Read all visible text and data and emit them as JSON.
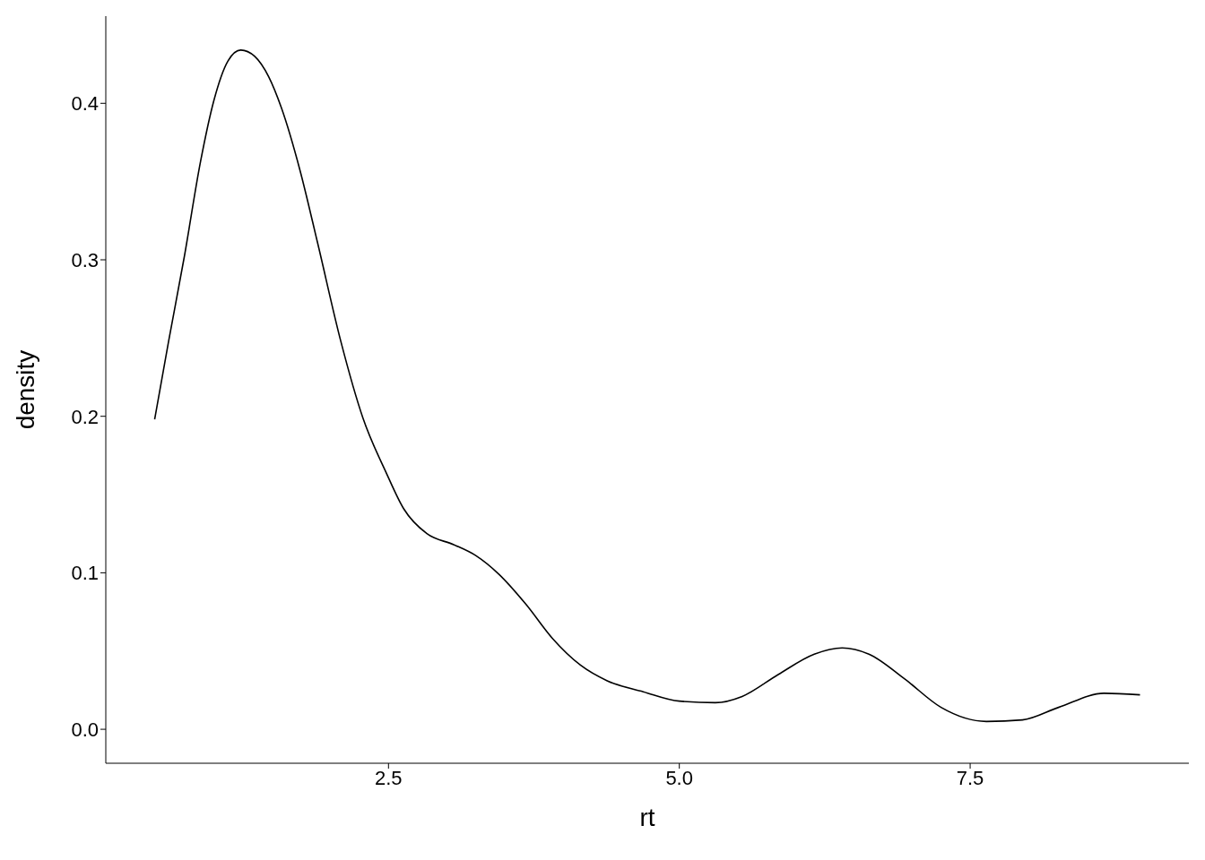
{
  "chart_data": {
    "type": "line",
    "xlabel": "rt",
    "ylabel": "density",
    "x": [
      0.49,
      0.61,
      0.745,
      0.885,
      1.0,
      1.12,
      1.23,
      1.35,
      1.47,
      1.58,
      1.74,
      1.89,
      2.09,
      2.28,
      2.48,
      2.63,
      2.83,
      3.06,
      3.25,
      3.45,
      3.68,
      3.91,
      4.15,
      4.38,
      4.69,
      5.0,
      5.31,
      5.54,
      5.85,
      6.16,
      6.4,
      6.63,
      6.94,
      7.25,
      7.64,
      7.95,
      8.26,
      8.65,
      8.96
    ],
    "series": [
      {
        "color": "#000000",
        "values": [
          0.198,
          0.248,
          0.302,
          0.363,
          0.402,
          0.427,
          0.434,
          0.43,
          0.417,
          0.397,
          0.357,
          0.311,
          0.248,
          0.199,
          0.164,
          0.141,
          0.125,
          0.118,
          0.111,
          0.099,
          0.08,
          0.058,
          0.041,
          0.031,
          0.024,
          0.018,
          0.017,
          0.021,
          0.035,
          0.048,
          0.052,
          0.048,
          0.032,
          0.014,
          0.005,
          0.006,
          0.014,
          0.023,
          0.022
        ]
      }
    ],
    "xlim": [
      0.07,
      9.38
    ],
    "xticks": [
      {
        "value": 2.5,
        "label": "2.5"
      },
      {
        "value": 5,
        "label": "5.0"
      },
      {
        "value": 7.5,
        "label": "7.5"
      }
    ],
    "ylim": [
      -0.0217,
      0.4557
    ],
    "yticks": [
      {
        "value": 0,
        "label": "0.0"
      },
      0.1,
      0.2,
      0.3,
      0.4
    ],
    "grid": false,
    "legend": false,
    "marker": "none",
    "line_style": "solid"
  }
}
